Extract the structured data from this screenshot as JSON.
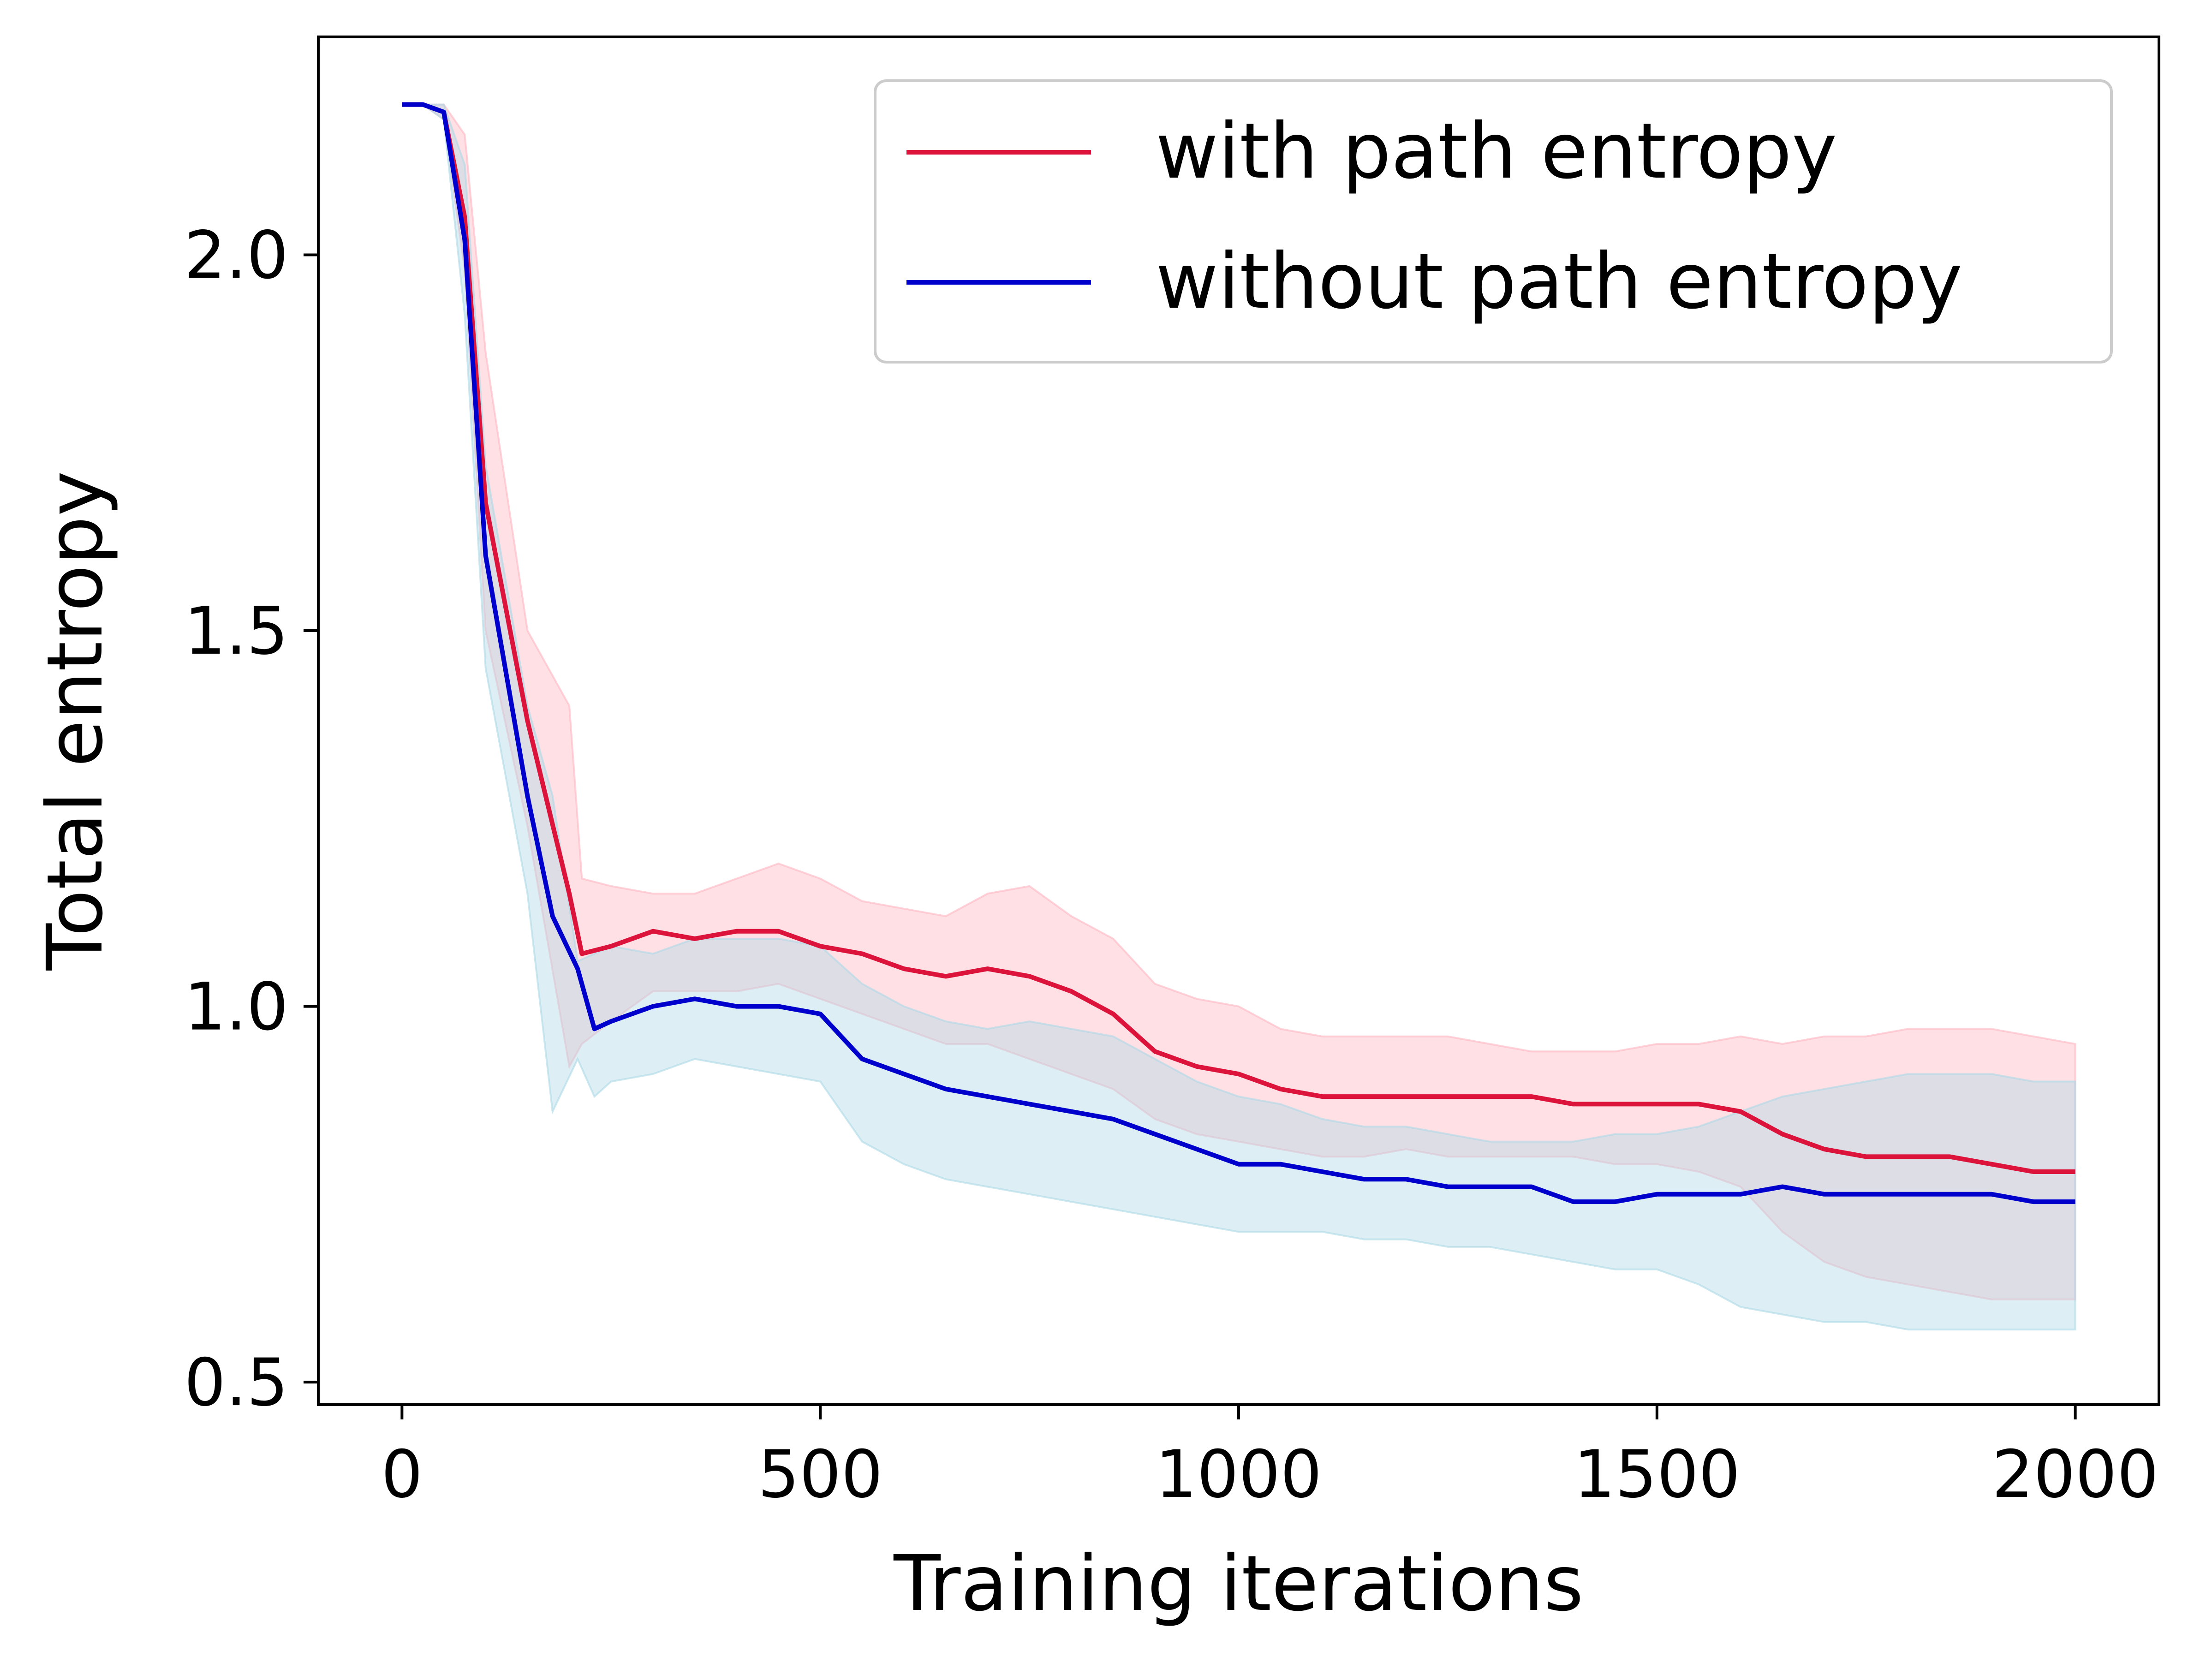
{
  "chart_data": {
    "type": "line",
    "title": "",
    "xlabel": "Training iterations",
    "ylabel": "Total entropy",
    "xlim": [
      -100,
      2100
    ],
    "ylim": [
      0.47,
      2.29
    ],
    "x_ticks": [
      0,
      500,
      1000,
      1500,
      2000
    ],
    "x_tick_labels": [
      "0",
      "500",
      "1000",
      "1500",
      "2000"
    ],
    "y_ticks": [
      0.5,
      1.0,
      1.5,
      2.0
    ],
    "y_tick_labels": [
      "0.5",
      "1.0",
      "1.5",
      "2.0"
    ],
    "grid": false,
    "legend_position": "top-right",
    "series": [
      {
        "name": "with path entropy",
        "color": "#dc143c",
        "band_color": "#ffb6c1",
        "x": [
          0,
          25,
          50,
          75,
          100,
          150,
          200,
          215,
          250,
          300,
          350,
          400,
          450,
          500,
          550,
          600,
          650,
          700,
          750,
          800,
          850,
          900,
          950,
          1000,
          1050,
          1100,
          1150,
          1200,
          1250,
          1300,
          1350,
          1400,
          1450,
          1500,
          1550,
          1600,
          1650,
          1700,
          1750,
          1800,
          1850,
          1900,
          1950,
          2000
        ],
        "mean": [
          2.2,
          2.2,
          2.19,
          2.05,
          1.67,
          1.38,
          1.15,
          1.07,
          1.08,
          1.1,
          1.09,
          1.1,
          1.1,
          1.08,
          1.07,
          1.05,
          1.04,
          1.05,
          1.04,
          1.02,
          0.99,
          0.94,
          0.92,
          0.91,
          0.89,
          0.88,
          0.88,
          0.88,
          0.88,
          0.88,
          0.88,
          0.87,
          0.87,
          0.87,
          0.87,
          0.86,
          0.83,
          0.81,
          0.8,
          0.8,
          0.8,
          0.79,
          0.78,
          0.78
        ],
        "upper": [
          2.2,
          2.2,
          2.2,
          2.16,
          1.87,
          1.5,
          1.4,
          1.17,
          1.16,
          1.15,
          1.15,
          1.17,
          1.19,
          1.17,
          1.14,
          1.13,
          1.12,
          1.15,
          1.16,
          1.12,
          1.09,
          1.03,
          1.01,
          1.0,
          0.97,
          0.96,
          0.96,
          0.96,
          0.96,
          0.95,
          0.94,
          0.94,
          0.94,
          0.95,
          0.95,
          0.96,
          0.95,
          0.96,
          0.96,
          0.97,
          0.97,
          0.97,
          0.96,
          0.95
        ],
        "lower": [
          2.2,
          2.2,
          2.18,
          1.98,
          1.5,
          1.24,
          0.92,
          0.95,
          0.98,
          1.02,
          1.02,
          1.02,
          1.03,
          1.01,
          0.99,
          0.97,
          0.95,
          0.95,
          0.93,
          0.91,
          0.89,
          0.85,
          0.83,
          0.82,
          0.81,
          0.8,
          0.8,
          0.81,
          0.8,
          0.8,
          0.8,
          0.8,
          0.79,
          0.79,
          0.78,
          0.76,
          0.7,
          0.66,
          0.64,
          0.63,
          0.62,
          0.61,
          0.61,
          0.61
        ]
      },
      {
        "name": "without path entropy",
        "color": "#0000cd",
        "band_color": "#add8e6",
        "x": [
          0,
          25,
          50,
          75,
          100,
          150,
          180,
          210,
          230,
          250,
          300,
          350,
          400,
          450,
          500,
          550,
          600,
          650,
          700,
          750,
          800,
          850,
          900,
          950,
          1000,
          1050,
          1100,
          1150,
          1200,
          1250,
          1300,
          1350,
          1400,
          1450,
          1500,
          1550,
          1600,
          1650,
          1700,
          1750,
          1800,
          1850,
          1900,
          1950,
          2000
        ],
        "mean": [
          2.2,
          2.2,
          2.19,
          2.02,
          1.6,
          1.28,
          1.12,
          1.05,
          0.97,
          0.98,
          1.0,
          1.01,
          1.0,
          1.0,
          0.99,
          0.93,
          0.91,
          0.89,
          0.88,
          0.87,
          0.86,
          0.85,
          0.83,
          0.81,
          0.79,
          0.79,
          0.78,
          0.77,
          0.77,
          0.76,
          0.76,
          0.76,
          0.74,
          0.74,
          0.75,
          0.75,
          0.75,
          0.76,
          0.75,
          0.75,
          0.75,
          0.75,
          0.75,
          0.74,
          0.74
        ],
        "upper": [
          2.2,
          2.2,
          2.2,
          2.12,
          1.72,
          1.4,
          1.28,
          1.06,
          1.07,
          1.08,
          1.07,
          1.09,
          1.09,
          1.09,
          1.08,
          1.03,
          1.0,
          0.98,
          0.97,
          0.98,
          0.97,
          0.96,
          0.93,
          0.9,
          0.88,
          0.87,
          0.85,
          0.84,
          0.84,
          0.83,
          0.82,
          0.82,
          0.82,
          0.83,
          0.83,
          0.84,
          0.86,
          0.88,
          0.89,
          0.9,
          0.91,
          0.91,
          0.91,
          0.9,
          0.9
        ],
        "lower": [
          2.2,
          2.2,
          2.18,
          1.92,
          1.45,
          1.15,
          0.86,
          0.93,
          0.88,
          0.9,
          0.91,
          0.93,
          0.92,
          0.91,
          0.9,
          0.82,
          0.79,
          0.77,
          0.76,
          0.75,
          0.74,
          0.73,
          0.72,
          0.71,
          0.7,
          0.7,
          0.7,
          0.69,
          0.69,
          0.68,
          0.68,
          0.67,
          0.66,
          0.65,
          0.65,
          0.63,
          0.6,
          0.59,
          0.58,
          0.58,
          0.57,
          0.57,
          0.57,
          0.57,
          0.57
        ]
      }
    ]
  }
}
